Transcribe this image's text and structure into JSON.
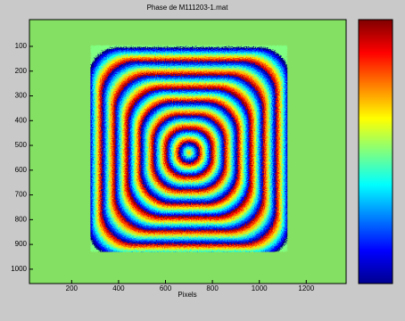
{
  "chart_data": {
    "type": "image",
    "title": "Phase de M111203-1.mat",
    "xlabel": "Pixels",
    "xlim": [
      20,
      1370
    ],
    "ylim": [
      1058,
      -8
    ],
    "y_direction": "reversed",
    "xticks": [
      200,
      400,
      600,
      800,
      1000,
      1200
    ],
    "yticks": [
      100,
      200,
      300,
      400,
      500,
      600,
      700,
      800,
      900,
      1000
    ],
    "background_color": "#84e063",
    "image_x": [
      280,
      1120
    ],
    "image_y": [
      95,
      930
    ],
    "colormap": "jet"
  }
}
